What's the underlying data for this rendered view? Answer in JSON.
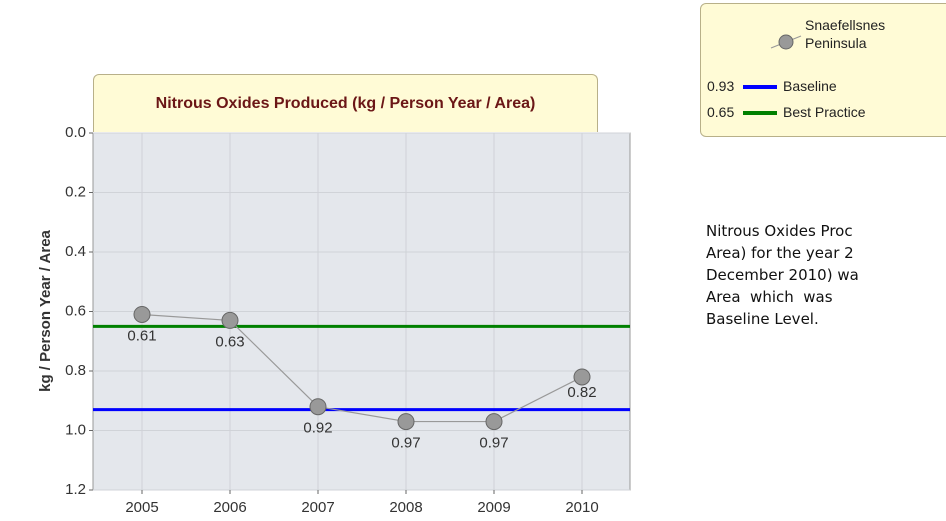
{
  "chart_data": {
    "type": "line",
    "title": "Nitrous Oxides Produced (kg / Person Year / Area)",
    "y_label": "kg / Person Year / Area",
    "categories": [
      "2005",
      "2006",
      "2007",
      "2008",
      "2009",
      "2010"
    ],
    "series": [
      {
        "name": "Snaefellsnes Peninsula",
        "color": "#999999",
        "values": [
          0.61,
          0.63,
          0.92,
          0.97,
          0.97,
          0.82
        ]
      }
    ],
    "reference_lines": [
      {
        "name": "Baseline",
        "value": 0.93,
        "color": "#0000ff"
      },
      {
        "name": "Best Practice",
        "value": 0.65,
        "color": "#008000"
      }
    ],
    "ylim": [
      0,
      1.2
    ],
    "y_inverted": true,
    "yticks": [
      {
        "value": 0,
        "label": "0.0"
      },
      0.2,
      0.4,
      0.6,
      0.8,
      {
        "value": 1,
        "label": "1.0"
      },
      1.2
    ],
    "grid": true
  },
  "description": {
    "lines": [
      "Nitrous Oxides Proc",
      "Area) for the year 2",
      "December 2010) wa",
      "Area  which  was",
      "Baseline Level."
    ]
  }
}
